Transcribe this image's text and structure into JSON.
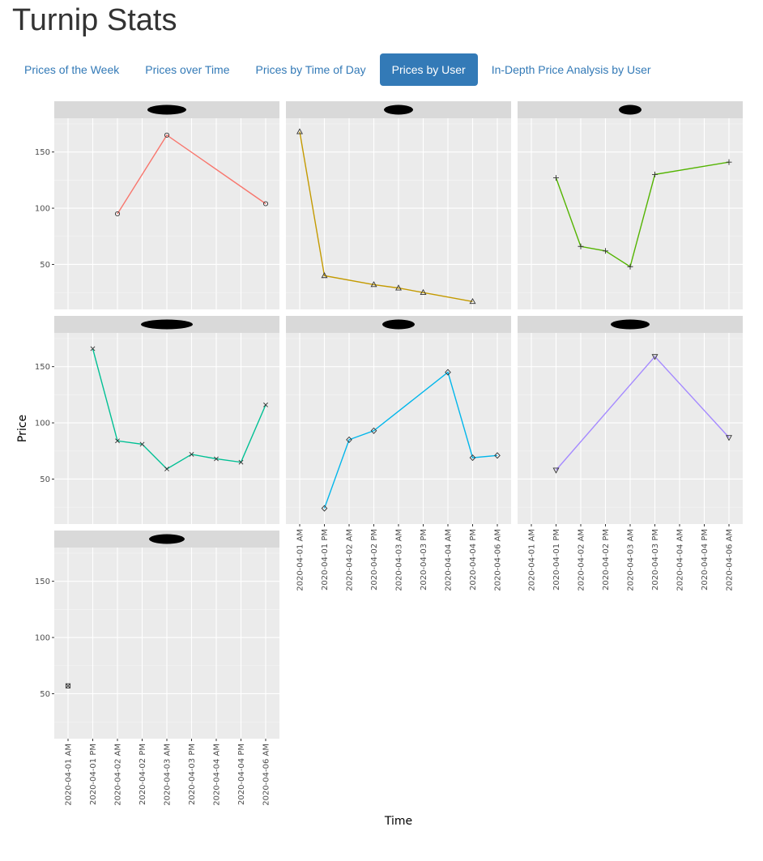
{
  "page": {
    "title": "Turnip Stats"
  },
  "tabs": [
    {
      "label": "Prices of the Week",
      "active": false
    },
    {
      "label": "Prices over Time",
      "active": false
    },
    {
      "label": "Prices by Time of Day",
      "active": false
    },
    {
      "label": "Prices by User",
      "active": true
    },
    {
      "label": "In-Depth Price Analysis by User",
      "active": false
    }
  ],
  "colors": {
    "accent": "#337ab7",
    "panel_bg": "#ebebeb",
    "strip_bg": "#d9d9d9",
    "redaction": "#000000"
  },
  "chart_data": {
    "type": "line",
    "facet": "user",
    "facet_labels_redacted": true,
    "xlabel": "Time",
    "ylabel": "Price",
    "x_categories": [
      "2020-04-01 AM",
      "2020-04-01 PM",
      "2020-04-02 AM",
      "2020-04-02 PM",
      "2020-04-03 AM",
      "2020-04-03 PM",
      "2020-04-04 AM",
      "2020-04-04 PM",
      "2020-04-06 AM"
    ],
    "y_ticks": [
      50,
      100,
      150
    ],
    "ylim": [
      10,
      180
    ],
    "grid": true,
    "legend": "none",
    "series": [
      {
        "color": "#f8766d",
        "marker": "circle",
        "points": [
          [
            "2020-04-02 AM",
            95
          ],
          [
            "2020-04-03 AM",
            165
          ],
          [
            "2020-04-06 AM",
            104
          ]
        ]
      },
      {
        "color": "#c49a00",
        "marker": "triangle",
        "points": [
          [
            "2020-04-01 AM",
            168
          ],
          [
            "2020-04-01 PM",
            40
          ],
          [
            "2020-04-02 PM",
            32
          ],
          [
            "2020-04-03 AM",
            29
          ],
          [
            "2020-04-03 PM",
            25
          ],
          [
            "2020-04-04 PM",
            17
          ]
        ]
      },
      {
        "color": "#53b400",
        "marker": "plus",
        "points": [
          [
            "2020-04-01 PM",
            127
          ],
          [
            "2020-04-02 AM",
            66
          ],
          [
            "2020-04-02 PM",
            62
          ],
          [
            "2020-04-03 AM",
            48
          ],
          [
            "2020-04-03 PM",
            130
          ],
          [
            "2020-04-06 AM",
            141
          ]
        ]
      },
      {
        "color": "#00c094",
        "marker": "cross",
        "points": [
          [
            "2020-04-01 PM",
            166
          ],
          [
            "2020-04-02 AM",
            84
          ],
          [
            "2020-04-02 PM",
            81
          ],
          [
            "2020-04-03 AM",
            59
          ],
          [
            "2020-04-03 PM",
            72
          ],
          [
            "2020-04-04 AM",
            68
          ],
          [
            "2020-04-04 PM",
            65
          ],
          [
            "2020-04-06 AM",
            116
          ]
        ]
      },
      {
        "color": "#00b6eb",
        "marker": "diamond",
        "points": [
          [
            "2020-04-01 PM",
            24
          ],
          [
            "2020-04-02 AM",
            85
          ],
          [
            "2020-04-02 PM",
            93
          ],
          [
            "2020-04-04 AM",
            145
          ],
          [
            "2020-04-04 PM",
            69
          ],
          [
            "2020-04-06 AM",
            71
          ]
        ]
      },
      {
        "color": "#a58aff",
        "marker": "triangle-down",
        "points": [
          [
            "2020-04-01 PM",
            58
          ],
          [
            "2020-04-03 PM",
            159
          ],
          [
            "2020-04-06 AM",
            87
          ]
        ]
      },
      {
        "color": "#fb61d7",
        "marker": "square-cross",
        "points": [
          [
            "2020-04-01 AM",
            57
          ]
        ]
      }
    ]
  }
}
